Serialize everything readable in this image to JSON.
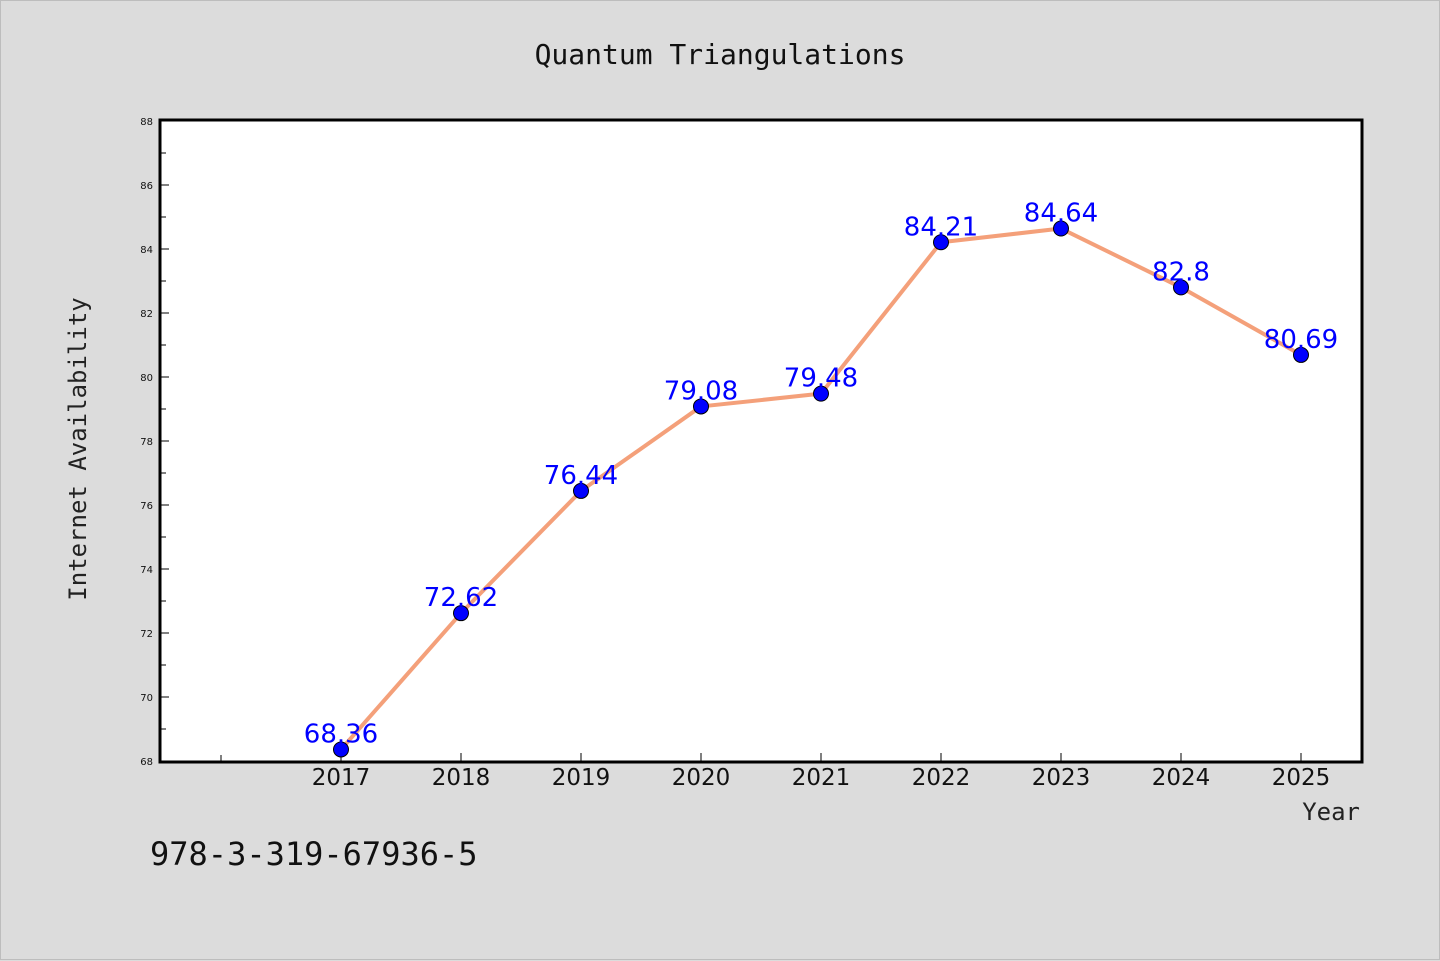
{
  "chart_data": {
    "type": "line",
    "title": "Quantum Triangulations",
    "xlabel": "Year",
    "ylabel": "Internet Availability",
    "categories": [
      "2017",
      "2018",
      "2019",
      "2020",
      "2021",
      "2022",
      "2023",
      "2024",
      "2025"
    ],
    "series": [
      {
        "values": [
          68.36,
          72.62,
          76.44,
          79.08,
          79.48,
          84.21,
          84.64,
          82.8,
          80.69
        ],
        "data_labels": [
          "68.36",
          "72.62",
          "76.44",
          "79.08",
          "79.48",
          "84.21",
          "84.64",
          "82.8",
          "80.69"
        ],
        "line_color": "#f4a07a",
        "marker_color": "#0000ff"
      }
    ],
    "ylim": [
      68,
      88
    ],
    "yticks": [
      "68",
      "70",
      "72",
      "74",
      "76",
      "78",
      "80",
      "82",
      "84",
      "86",
      "88"
    ],
    "grid": false,
    "label_color": "#0000ff"
  },
  "footer_text": "978-3-319-67936-5"
}
